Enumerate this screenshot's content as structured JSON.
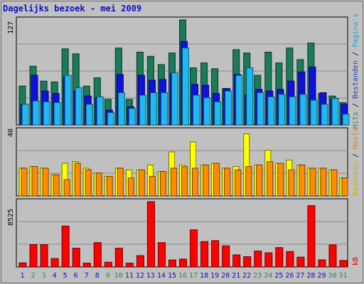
{
  "title": "Dagelijks bezoek - mei 2009",
  "y_max_labels": {
    "visits": "127",
    "visitors": "40",
    "kb": "8525"
  },
  "right_legend": {
    "top": [
      {
        "text": "Hits",
        "color": "#2e8b57"
      },
      {
        "text": " / ",
        "color": "#000000"
      },
      {
        "text": "Bestanden",
        "color": "#1f3fbf"
      },
      {
        "text": " / ",
        "color": "#000000"
      },
      {
        "text": "Pagina's",
        "color": "#17a7d8"
      }
    ],
    "middle": [
      {
        "text": "Bezoeken",
        "color": "#c8b400"
      },
      {
        "text": " / ",
        "color": "#000000"
      },
      {
        "text": "Hosts",
        "color": "#e07f12"
      }
    ],
    "bottom": [
      {
        "text": "kB",
        "color": "#e00000"
      }
    ]
  },
  "colors": {
    "background": "#c0c0c0",
    "frame": "#c0c0c0",
    "title": "#1010c0",
    "hits": "#1a7a5a",
    "files": "#1010e0",
    "pages": "#20b8f0",
    "visits": "#ffff00",
    "hosts": "#ff8c00",
    "kb": "#ff0000",
    "weekend_label": "#2e8b57",
    "weekday_label": "#1010c0"
  },
  "chart_data": [
    {
      "type": "bar",
      "title": "Dagelijks bezoek - mei 2009",
      "ylim": [
        0,
        127
      ],
      "categories": [
        "1",
        "2",
        "3",
        "4",
        "5",
        "6",
        "7",
        "8",
        "9",
        "10",
        "11",
        "12",
        "13",
        "14",
        "15",
        "16",
        "17",
        "18",
        "19",
        "20",
        "21",
        "22",
        "23",
        "24",
        "25",
        "26",
        "27",
        "28",
        "29",
        "30",
        "31"
      ],
      "weekend": [
        "2",
        "3",
        "9",
        "10",
        "16",
        "17",
        "23",
        "24",
        "30",
        "31"
      ],
      "series": [
        {
          "name": "Hits",
          "values": [
            47,
            71,
            53,
            52,
            92,
            86,
            47,
            57,
            31,
            93,
            31,
            88,
            83,
            73,
            87,
            127,
            69,
            75,
            68,
            44,
            91,
            87,
            60,
            88,
            75,
            93,
            79,
            99,
            38,
            35,
            27
          ]
        },
        {
          "name": "Bestanden",
          "values": [
            25,
            60,
            41,
            38,
            58,
            41,
            35,
            33,
            18,
            61,
            22,
            60,
            54,
            55,
            62,
            101,
            49,
            48,
            38,
            44,
            61,
            36,
            43,
            41,
            43,
            53,
            64,
            70,
            39,
            31,
            25
          ]
        },
        {
          "name": "Pagina's",
          "values": [
            25,
            29,
            28,
            27,
            60,
            45,
            25,
            34,
            15,
            39,
            20,
            36,
            39,
            39,
            63,
            93,
            36,
            33,
            28,
            41,
            60,
            69,
            39,
            34,
            37,
            34,
            37,
            30,
            25,
            32,
            13
          ]
        }
      ]
    },
    {
      "type": "bar",
      "ylim": [
        0,
        40
      ],
      "categories": [
        "1",
        "2",
        "3",
        "4",
        "5",
        "6",
        "7",
        "8",
        "9",
        "10",
        "11",
        "12",
        "13",
        "14",
        "15",
        "16",
        "17",
        "18",
        "19",
        "20",
        "21",
        "22",
        "23",
        "24",
        "25",
        "26",
        "27",
        "28",
        "29",
        "30",
        "31"
      ],
      "series": [
        {
          "name": "Bezoeken",
          "values": [
            17,
            18,
            17,
            13,
            20,
            21,
            17,
            14,
            12,
            17,
            16,
            16,
            19,
            15,
            27,
            19,
            33,
            19,
            20,
            17,
            18,
            38,
            19,
            28,
            20,
            22,
            19,
            17,
            17,
            16,
            11
          ]
        },
        {
          "name": "Hosts",
          "values": [
            17,
            18,
            17,
            13,
            10,
            20,
            16,
            14,
            12,
            17,
            11,
            16,
            12,
            15,
            17,
            18,
            17,
            19,
            20,
            17,
            16,
            18,
            19,
            21,
            20,
            16,
            19,
            17,
            17,
            16,
            11
          ]
        }
      ]
    },
    {
      "type": "bar",
      "ylim": [
        0,
        8525
      ],
      "categories": [
        "1",
        "2",
        "3",
        "4",
        "5",
        "6",
        "7",
        "8",
        "9",
        "10",
        "11",
        "12",
        "13",
        "14",
        "15",
        "16",
        "17",
        "18",
        "19",
        "20",
        "21",
        "22",
        "23",
        "24",
        "25",
        "26",
        "27",
        "28",
        "29",
        "30",
        "31"
      ],
      "series": [
        {
          "name": "kB",
          "values": [
            540,
            2910,
            2910,
            1100,
            5340,
            2450,
            500,
            3180,
            620,
            2450,
            500,
            1480,
            8525,
            3180,
            910,
            1030,
            4850,
            3310,
            3440,
            2750,
            1580,
            1340,
            2080,
            1850,
            2530,
            2010,
            1280,
            8000,
            930,
            2870,
            850
          ]
        }
      ]
    }
  ]
}
